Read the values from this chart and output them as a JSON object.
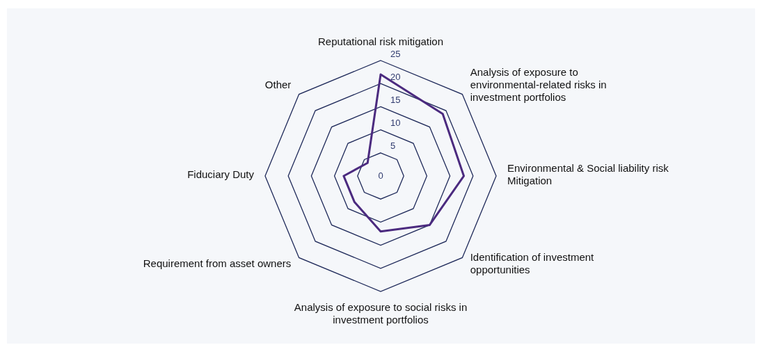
{
  "chart_data": {
    "type": "radar",
    "categories": [
      "Reputational risk mitigation",
      "Analysis of exposure to environmental-related risks in investment portfolios",
      "Environmental & Social liability risk Mitigation",
      "Identification of investment opportunities",
      "Analysis of exposure to social risks in investment portfolios",
      "Requirement from asset owners",
      "Fiduciary Duty",
      "Other"
    ],
    "series": [
      {
        "color": "#4b2a7f",
        "values": [
          22,
          19,
          18,
          15,
          12,
          8,
          8,
          4
        ]
      }
    ],
    "ylim": [
      0,
      25
    ],
    "yticks": [
      0,
      5,
      10,
      15,
      20,
      25
    ],
    "grid": true,
    "legend": false,
    "marker": "none"
  }
}
